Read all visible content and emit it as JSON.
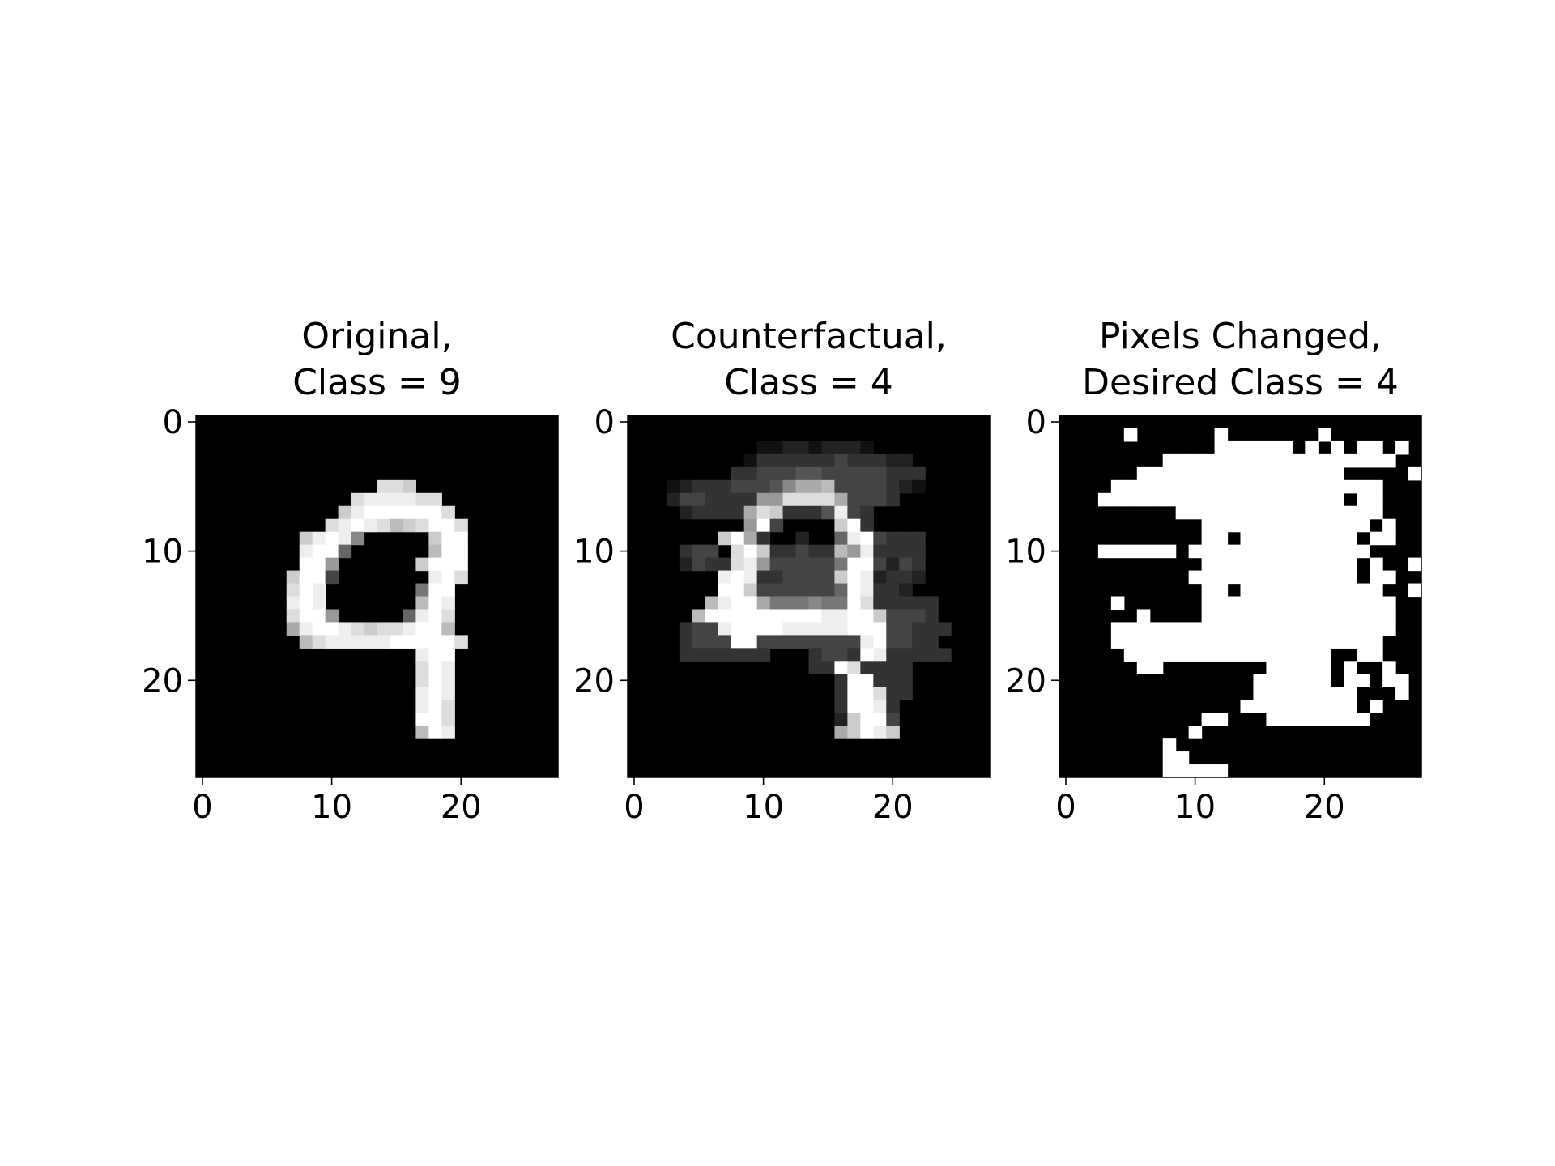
{
  "chart_data": [
    {
      "type": "heatmap",
      "title_lines": [
        "Original,",
        "Class = 9"
      ],
      "xticks": [
        0,
        10,
        20
      ],
      "yticks": [
        0,
        10,
        20
      ],
      "xlim": [
        -0.5,
        27.5
      ],
      "ylim": [
        27.5,
        -0.5
      ],
      "colormap": "gray",
      "value_range": [
        0,
        255
      ],
      "rows": [
        "0000000000000000000000000000",
        "0000000000000000000000000000",
        "0000000000000000000000000000",
        "0000000000000000000000000000",
        "0000000000000000000000000000",
        "0000000000000lddc000000000000",
        "000000000000deeeedd00000000000",
        "00000000000ceffffffd0000000000",
        "0000000000defedbcdffd000000000",
        "00000000cefe800000cff000000000",
        "00000000eff6000000bff000000000",
        "00000000ff9000000cfff000000000",
        "0000000cff40000000efd000000000",
        "0000000dfe00000007ff0000000000",
        "0000000efe0000000bfe0000000000",
        "0000000dff9000006efd0000000000",
        "0000000aeffedcddeffb0000000000",
        "00000000bdeeeeefffffd000000000",
        "00000000000000000eff0000000000",
        "00000000000000000dfe0000000000",
        "00000000000000000dfe0000000000",
        "00000000000000000efe0000000000",
        "00000000000000000efd0000000000",
        "00000000000000000ffd0000000000",
        "00000000000000000bfe0000000000",
        "00000000000000000000000000000",
        "0000000000000000000000000000",
        "0000000000000000000000000000"
      ]
    },
    {
      "type": "heatmap",
      "title_lines": [
        "Counterfactual,",
        "Class = 4"
      ],
      "xticks": [
        0,
        10,
        20
      ],
      "yticks": [
        0,
        10,
        20
      ],
      "xlim": [
        -0.5,
        27.5
      ],
      "ylim": [
        27.5,
        -0.5
      ],
      "colormap": "gray",
      "value_range": [
        0,
        255
      ],
      "rows": [
        "0000000000000000000000000000",
        "0000000000000000000000000000",
        "0000000000112212221000000000",
        "0000000001333333433322000000",
        "0000000033444554444433300000",
        "0001233344458aab444432100000",
        "000244333399dddda44430000000",
        "000023333adc3335e4300000000",
        "0000000009f40000cf30000000000",
        "0000000cfa3002006ef4333000000",
        "00003440dfc33433b9e333300000",
        "00002433de9444447ff424300000",
        "0000000efe334444cfe233200000",
        "0000000ffc4444446fe332000000",
        "000000beffa777877fd3333300000",
        "00000bfffffffffeeffc444300000",
        "0000344effffeeeeefff44333000",
        "00003444ff44444444ef4433000000",
        "000033333330003443fe3333300000",
        "0000000000000033fd3333000000",
        "00000000000000003ff33300000000",
        "00000000000000003ffd3300000000",
        "00000000000000003ffe3000000000",
        "00000000000000002cff4000000000",
        "0000000000000000acfec000000000",
        "0000000000000000000000000000",
        "0000000000000000000000000000",
        "0000000000000000000000000000"
      ]
    },
    {
      "type": "heatmap",
      "title_lines": [
        "Pixels Changed,",
        "Desired Class = 4"
      ],
      "xticks": [
        0,
        10,
        20
      ],
      "yticks": [
        0,
        10,
        20
      ],
      "xlim": [
        -0.5,
        27.5
      ],
      "ylim": [
        27.5,
        -0.5
      ],
      "colormap": "binary",
      "value_range": [
        0,
        1
      ],
      "rows": [
        "0000000000000000000000000000",
        "0000010000001000000010000000",
        "0000000000001111110101011010",
        "0000000011111111111111111100",
        "0000001111111111111111000001",
        "0000111111111111111111111000",
        "0001111111111111111111011000",
        "0000000001111111111111111000",
        "0000000000011111111111110100",
        "0000000000011011111111101100",
        "0001111110111111111111110000",
        "0000000000011111111111101001",
        "0000000000111111111111101100",
        "0000000000011011111111111001",
        "0000100000011111111111111100",
        "0000001000011111111111111100",
        "0000111111111111111111111100",
        "0000111111111111111111111000",
        "0000011111111111111110011000",
        "0000001100000000111110100100",
        "0000000000000001111110110110",
        "0000000000000001111111100010",
        "0000000000000011111111101000",
        "0000000000011000111111110000",
        "0000000000100000000000000000",
        "0000000010000000000000000000",
        "0000000011000000000000000000",
        "0000000011111000000000000000"
      ]
    }
  ]
}
